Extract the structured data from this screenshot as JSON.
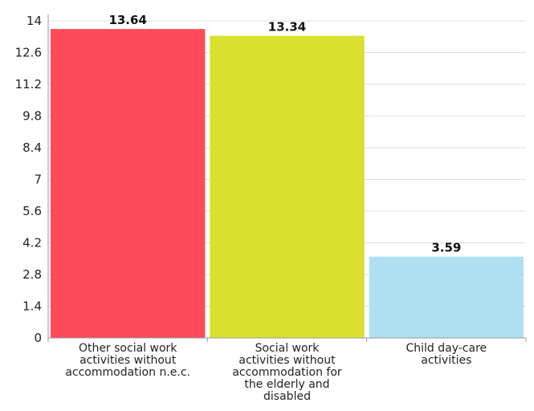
{
  "chart_data": {
    "type": "bar",
    "title": "",
    "xlabel": "",
    "ylabel": "",
    "ylim": [
      0,
      14
    ],
    "yticks": [
      0,
      1.4,
      2.8,
      4.2,
      5.6,
      7,
      8.4,
      9.8,
      11.2,
      12.6,
      14
    ],
    "ytick_labels": [
      "0",
      "1.4",
      "2.8",
      "4.2",
      "5.6",
      "7",
      "8.4",
      "9.8",
      "11.2",
      "12.6",
      "14"
    ],
    "grid": "horizontal",
    "categories": [
      [
        "Other social work",
        "activities without",
        "accommodation n.e.c."
      ],
      [
        "Social work",
        "activities without",
        "accommodation for",
        "the elderly and",
        "disabled"
      ],
      [
        "Child day-care",
        "activities"
      ]
    ],
    "values": [
      13.64,
      13.34,
      3.59
    ],
    "value_labels": [
      "13.64",
      "13.34",
      "3.59"
    ],
    "colors": [
      "#ff4a5a",
      "#d9e02e",
      "#aee0f2"
    ]
  }
}
